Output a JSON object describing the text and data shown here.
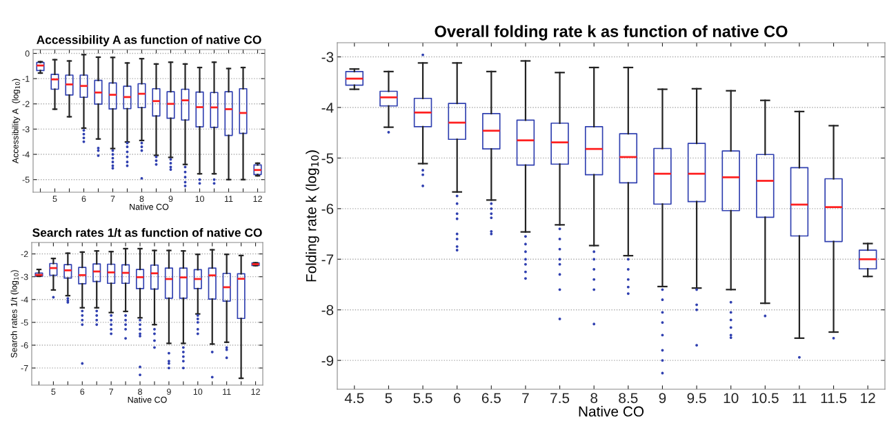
{
  "chart_data": [
    {
      "type": "box",
      "title": "Accessibility A as function of native CO",
      "xlabel": "Native CO",
      "ylabel": "Accessibility A  (log$_{10}$)",
      "categories": [
        null,
        "5",
        null,
        "6",
        null,
        "7",
        null,
        "8",
        null,
        "9",
        null,
        "10",
        null,
        "11",
        null,
        "12"
      ],
      "ylim": [
        -5.5,
        0.15
      ],
      "yticks": [
        -5,
        -4,
        -3,
        -2,
        -1,
        0
      ],
      "grid": "y",
      "series": [
        {
          "color": "#3040b0",
          "boxes": [
            {
              "low": -0.78,
              "q1": -0.68,
              "median": -0.48,
              "q3": -0.36,
              "high": -0.33
            },
            {
              "low": -2.21,
              "q1": -1.42,
              "median": -1.03,
              "q3": -0.83,
              "high": -0.25
            },
            {
              "low": -2.51,
              "q1": -1.65,
              "median": -1.23,
              "q3": -0.86,
              "high": -0.3
            },
            {
              "low": -2.96,
              "q1": -1.74,
              "median": -1.29,
              "q3": -0.86,
              "high": -0.05,
              "outliers": [
                -3.05,
                -3.2,
                -3.35,
                -3.5
              ]
            },
            {
              "low": -3.39,
              "q1": -2.01,
              "median": -1.55,
              "q3": -1.07,
              "high": -0.15,
              "outliers": [
                -3.75,
                -3.85,
                -4.05
              ]
            },
            {
              "low": -3.77,
              "q1": -2.2,
              "median": -1.64,
              "q3": -1.17,
              "high": -0.16,
              "outliers": [
                -3.85,
                -4.0,
                -4.15,
                -4.3,
                -4.45,
                -4.55
              ]
            },
            {
              "low": -3.51,
              "q1": -2.19,
              "median": -1.73,
              "q3": -1.3,
              "high": -0.38,
              "outliers": [
                -3.55,
                -3.7,
                -3.9,
                -4.1,
                -4.3,
                -4.45
              ]
            },
            {
              "low": -3.45,
              "q1": -2.15,
              "median": -1.6,
              "q3": -1.2,
              "high": -0.21,
              "outliers": [
                -3.55,
                -3.7,
                -3.85,
                -4.95
              ]
            },
            {
              "low": -4.04,
              "q1": -2.48,
              "median": -1.89,
              "q3": -1.4,
              "high": -0.42,
              "outliers": [
                -4.1,
                -4.25,
                -4.4
              ]
            },
            {
              "low": -4.12,
              "q1": -2.57,
              "median": -2.0,
              "q3": -1.52,
              "high": -0.35,
              "outliers": [
                -4.2,
                -4.35,
                -4.5,
                -4.6
              ]
            },
            {
              "low": -4.4,
              "q1": -2.64,
              "median": -1.86,
              "q3": -1.42,
              "high": -0.42,
              "outliers": [
                -4.5,
                -4.7,
                -4.9,
                -5.1,
                -5.25
              ]
            },
            {
              "low": -4.77,
              "q1": -2.91,
              "median": -2.13,
              "q3": -1.53,
              "high": -0.56,
              "outliers": [
                -5.0,
                -5.15
              ]
            },
            {
              "low": -4.77,
              "q1": -2.93,
              "median": -2.14,
              "q3": -1.55,
              "high": -0.35,
              "outliers": [
                -5.0,
                -5.15
              ]
            },
            {
              "low": -5.0,
              "q1": -3.25,
              "median": -2.21,
              "q3": -1.52,
              "high": -0.6
            },
            {
              "low": -5.0,
              "q1": -3.17,
              "median": -2.36,
              "q3": -1.4,
              "high": -0.56
            },
            {
              "low": -4.85,
              "q1": -4.8,
              "median": -4.62,
              "q3": -4.42,
              "high": -4.35
            }
          ]
        }
      ]
    },
    {
      "type": "box",
      "title": "Search rates 1/t as function of native CO",
      "xlabel": "Native CO",
      "ylabel": "Search rates 1/t (log$_{10}$)",
      "categories": [
        null,
        "5",
        null,
        "6",
        null,
        "7",
        null,
        "8",
        null,
        "9",
        null,
        "10",
        null,
        "11",
        null,
        "12"
      ],
      "ylim": [
        -7.75,
        -1.5
      ],
      "yticks": [
        -7,
        -6,
        -5,
        -4,
        -3,
        -2
      ],
      "grid": "y",
      "series": [
        {
          "color": "#3040b0",
          "boxes": [
            {
              "low": -2.98,
              "q1": -2.98,
              "median": -2.92,
              "q3": -2.84,
              "high": -2.68
            },
            {
              "low": -3.58,
              "q1": -2.94,
              "median": -2.62,
              "q3": -2.42,
              "high": -2.2,
              "outliers": [
                -3.9
              ]
            },
            {
              "low": -3.83,
              "q1": -3.06,
              "median": -2.72,
              "q3": -2.47,
              "high": -1.97,
              "outliers": [
                -3.95,
                -4.05,
                -4.12
              ]
            },
            {
              "low": -4.36,
              "q1": -3.31,
              "median": -2.93,
              "q3": -2.59,
              "high": -1.92,
              "outliers": [
                -4.5,
                -4.7,
                -4.9,
                -5.1,
                -6.8
              ]
            },
            {
              "low": -4.36,
              "q1": -3.21,
              "median": -2.77,
              "q3": -2.44,
              "high": -1.87,
              "outliers": [
                -4.5,
                -4.7,
                -4.9,
                -5.1
              ]
            },
            {
              "low": -4.57,
              "q1": -3.29,
              "median": -2.81,
              "q3": -2.45,
              "high": -1.9,
              "outliers": [
                -4.7,
                -4.9,
                -5.1,
                -5.3,
                -5.5
              ]
            },
            {
              "low": -4.52,
              "q1": -3.29,
              "median": -2.83,
              "q3": -2.48,
              "high": -1.77,
              "outliers": [
                -4.7,
                -4.9,
                -5.1,
                -5.3,
                -5.7
              ]
            },
            {
              "low": -4.8,
              "q1": -3.52,
              "median": -3.02,
              "q3": -2.68,
              "high": -1.77,
              "outliers": [
                -4.9,
                -5.1,
                -5.3,
                -5.5,
                -5.6,
                -6.95,
                -7.3
              ]
            },
            {
              "low": -5.1,
              "q1": -3.54,
              "median": -2.85,
              "q3": -2.49,
              "high": -1.85,
              "outliers": [
                -5.3,
                -5.5,
                -5.8,
                -6.1
              ]
            },
            {
              "low": -5.92,
              "q1": -3.94,
              "median": -3.1,
              "q3": -2.62,
              "high": -1.85,
              "outliers": [
                -6.35,
                -6.7,
                -6.8,
                -7.0
              ]
            },
            {
              "low": -5.92,
              "q1": -3.94,
              "median": -3.03,
              "q3": -2.62,
              "high": -1.87,
              "outliers": [
                -6.1,
                -6.3,
                -6.5,
                -6.7,
                -7.0
              ]
            },
            {
              "low": -4.63,
              "q1": -3.52,
              "median": -3.1,
              "q3": -2.69,
              "high": -2.02,
              "outliers": [
                -4.7,
                -4.85,
                -5.0,
                -5.3,
                -5.5
              ]
            },
            {
              "low": -5.95,
              "q1": -3.98,
              "median": -2.94,
              "q3": -2.62,
              "high": -1.82,
              "outliers": [
                -6.3,
                -7.4
              ]
            },
            {
              "low": -5.87,
              "q1": -4.07,
              "median": -3.46,
              "q3": -2.85,
              "high": -2.02,
              "outliers": [
                -6.1,
                -6.2,
                -6.55
              ]
            },
            {
              "low": -7.45,
              "q1": -4.83,
              "median": -3.09,
              "q3": -2.87,
              "high": -2.07
            },
            {
              "low": -2.51,
              "q1": -2.51,
              "median": -2.45,
              "q3": -2.39,
              "high": -2.39
            }
          ]
        }
      ]
    },
    {
      "type": "box",
      "title": "Overall folding rate k as function of native CO",
      "xlabel": "Native CO",
      "ylabel": "Folding rate k (log$_{10}$)",
      "categories": [
        "4.5",
        "5",
        "5.5",
        "6",
        "6.5",
        "7",
        "7.5",
        "8",
        "8.5",
        "9",
        "9.5",
        "10",
        "10.5",
        "11",
        "11.5",
        "12"
      ],
      "ylim": [
        -9.57,
        -2.72
      ],
      "yticks": [
        -9,
        -8,
        -7,
        -6,
        -5,
        -4,
        -3
      ],
      "grid": "y",
      "series": [
        {
          "color": "#3040b0",
          "boxes": [
            {
              "low": -3.64,
              "q1": -3.56,
              "median": -3.43,
              "q3": -3.29,
              "high": -3.24
            },
            {
              "low": -4.39,
              "q1": -3.97,
              "median": -3.8,
              "q3": -3.68,
              "high": -3.29,
              "outliers": [
                -4.49
              ]
            },
            {
              "low": -5.11,
              "q1": -4.38,
              "median": -4.1,
              "q3": -3.82,
              "high": -3.12,
              "outliers": [
                -2.96,
                -5.24,
                -5.33,
                -5.55
              ]
            },
            {
              "low": -5.67,
              "q1": -4.63,
              "median": -4.3,
              "q3": -3.92,
              "high": -3.12,
              "outliers": [
                -5.75,
                -5.9,
                -6.1,
                -6.2,
                -6.5,
                -6.6,
                -6.75,
                -6.82
              ]
            },
            {
              "low": -5.83,
              "q1": -4.82,
              "median": -4.46,
              "q3": -4.12,
              "high": -3.29,
              "outliers": [
                -5.9,
                -6.0,
                -6.1,
                -6.18,
                -6.45,
                -6.5
              ]
            },
            {
              "low": -6.46,
              "q1": -5.14,
              "median": -4.65,
              "q3": -4.25,
              "high": -3.08,
              "outliers": [
                -6.55,
                -6.7,
                -6.85,
                -7.0,
                -7.1,
                -7.25,
                -7.38
              ]
            },
            {
              "low": -6.32,
              "q1": -5.12,
              "median": -4.69,
              "q3": -4.31,
              "high": -3.31,
              "outliers": [
                -6.4,
                -6.6,
                -6.8,
                -7.0,
                -7.1,
                -7.3,
                -7.6,
                -8.18
              ]
            },
            {
              "low": -6.73,
              "q1": -5.33,
              "median": -4.82,
              "q3": -4.38,
              "high": -3.21,
              "outliers": [
                -6.85,
                -7.0,
                -7.2,
                -7.4,
                -7.6,
                -8.28
              ]
            },
            {
              "low": -6.93,
              "q1": -5.49,
              "median": -4.98,
              "q3": -4.52,
              "high": -3.21,
              "outliers": [
                -7.0,
                -7.2,
                -7.4,
                -7.55,
                -7.68
              ]
            },
            {
              "low": -7.54,
              "q1": -5.91,
              "median": -5.31,
              "q3": -4.81,
              "high": -3.64,
              "outliers": [
                -7.6,
                -7.8,
                -8.05,
                -8.25,
                -8.5,
                -8.8,
                -9.0,
                -9.25
              ]
            },
            {
              "low": -7.57,
              "q1": -5.86,
              "median": -5.31,
              "q3": -4.71,
              "high": -3.63,
              "outliers": [
                -7.6,
                -7.9,
                -8.0,
                -8.7
              ]
            },
            {
              "low": -7.6,
              "q1": -6.04,
              "median": -5.38,
              "q3": -4.86,
              "high": -3.67,
              "outliers": [
                -7.85,
                -8.05,
                -8.2,
                -8.35,
                -8.5,
                -8.55
              ]
            },
            {
              "low": -7.87,
              "q1": -6.17,
              "median": -5.45,
              "q3": -4.93,
              "high": -3.86,
              "outliers": [
                -8.12
              ]
            },
            {
              "low": -8.56,
              "q1": -6.54,
              "median": -5.92,
              "q3": -5.19,
              "high": -4.08,
              "outliers": [
                -8.94
              ]
            },
            {
              "low": -8.44,
              "q1": -6.65,
              "median": -5.97,
              "q3": -5.41,
              "high": -4.36,
              "outliers": [
                -8.56
              ]
            },
            {
              "low": -7.34,
              "q1": -7.19,
              "median": -7.0,
              "q3": -6.82,
              "high": -6.69
            }
          ]
        }
      ]
    }
  ]
}
